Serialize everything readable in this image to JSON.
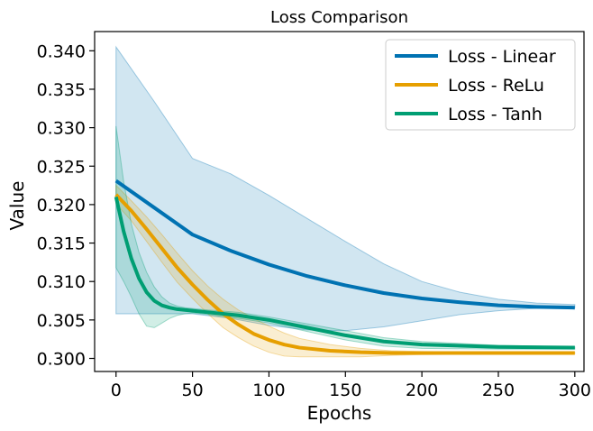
{
  "chart_data": {
    "type": "line",
    "title": "Loss Comparison",
    "xlabel": "Epochs",
    "ylabel": "Value",
    "xlim": [
      -14,
      306
    ],
    "ylim": [
      0.2983,
      0.3425
    ],
    "xticks": [
      0,
      50,
      100,
      150,
      200,
      250,
      300
    ],
    "yticks": [
      0.3,
      0.305,
      0.31,
      0.315,
      0.32,
      0.325,
      0.33,
      0.335,
      0.34
    ],
    "ytick_labels": [
      "0.300",
      "0.305",
      "0.310",
      "0.315",
      "0.320",
      "0.325",
      "0.330",
      "0.335",
      "0.340"
    ],
    "grid": false,
    "legend_position": "top-right",
    "series": [
      {
        "name": "Loss - Linear",
        "color": "#0072B2",
        "x": [
          0,
          25,
          50,
          75,
          100,
          125,
          150,
          175,
          200,
          225,
          250,
          275,
          300
        ],
        "values": [
          0.3231,
          0.3196,
          0.3161,
          0.314,
          0.3122,
          0.3107,
          0.3095,
          0.3085,
          0.3078,
          0.3073,
          0.3069,
          0.3067,
          0.3066
        ],
        "upper": [
          0.3405,
          0.3334,
          0.326,
          0.324,
          0.3212,
          0.3182,
          0.3152,
          0.3123,
          0.31,
          0.3086,
          0.3077,
          0.3072,
          0.307
        ],
        "lower": [
          0.3058,
          0.3058,
          0.3058,
          0.3052,
          0.3043,
          0.3037,
          0.3036,
          0.3041,
          0.3049,
          0.3057,
          0.3062,
          0.3065,
          0.3066
        ]
      },
      {
        "name": "Loss - ReLu",
        "color": "#E69F00",
        "x": [
          0,
          10,
          20,
          30,
          40,
          50,
          60,
          70,
          80,
          90,
          100,
          110,
          120,
          140,
          160,
          180,
          200,
          250,
          300
        ],
        "values": [
          0.3213,
          0.3192,
          0.3168,
          0.3143,
          0.3118,
          0.3096,
          0.3076,
          0.3058,
          0.3044,
          0.3032,
          0.3024,
          0.3018,
          0.3014,
          0.301,
          0.3008,
          0.3007,
          0.3007,
          0.3007,
          0.3007
        ],
        "upper": [
          0.3225,
          0.3205,
          0.3184,
          0.3161,
          0.3137,
          0.3114,
          0.3094,
          0.3077,
          0.3063,
          0.3052,
          0.3042,
          0.3033,
          0.3026,
          0.3018,
          0.3013,
          0.301,
          0.3009,
          0.3008,
          0.3008
        ],
        "lower": [
          0.3201,
          0.3179,
          0.3152,
          0.3125,
          0.3099,
          0.3078,
          0.3058,
          0.304,
          0.3027,
          0.3016,
          0.3008,
          0.3003,
          0.3002,
          0.3002,
          0.3002,
          0.3004,
          0.3005,
          0.3006,
          0.3006
        ]
      },
      {
        "name": "Loss - Tanh",
        "color": "#009E73",
        "x": [
          0,
          5,
          10,
          15,
          20,
          25,
          30,
          35,
          40,
          45,
          50,
          60,
          80,
          100,
          125,
          150,
          175,
          200,
          250,
          300
        ],
        "values": [
          0.321,
          0.3165,
          0.313,
          0.3104,
          0.3086,
          0.3075,
          0.3069,
          0.3066,
          0.3064,
          0.3063,
          0.3062,
          0.306,
          0.3056,
          0.305,
          0.304,
          0.303,
          0.3022,
          0.3018,
          0.3015,
          0.3014
        ],
        "upper": [
          0.3302,
          0.323,
          0.3175,
          0.3138,
          0.3112,
          0.3093,
          0.308,
          0.3072,
          0.3068,
          0.3066,
          0.3065,
          0.3063,
          0.306,
          0.3054,
          0.3045,
          0.3036,
          0.3027,
          0.3022,
          0.3017,
          0.3015
        ],
        "lower": [
          0.3118,
          0.31,
          0.308,
          0.3058,
          0.3042,
          0.304,
          0.3046,
          0.3052,
          0.3056,
          0.3058,
          0.3059,
          0.3057,
          0.3052,
          0.3046,
          0.3035,
          0.3024,
          0.3016,
          0.3013,
          0.3012,
          0.3012
        ]
      }
    ]
  }
}
